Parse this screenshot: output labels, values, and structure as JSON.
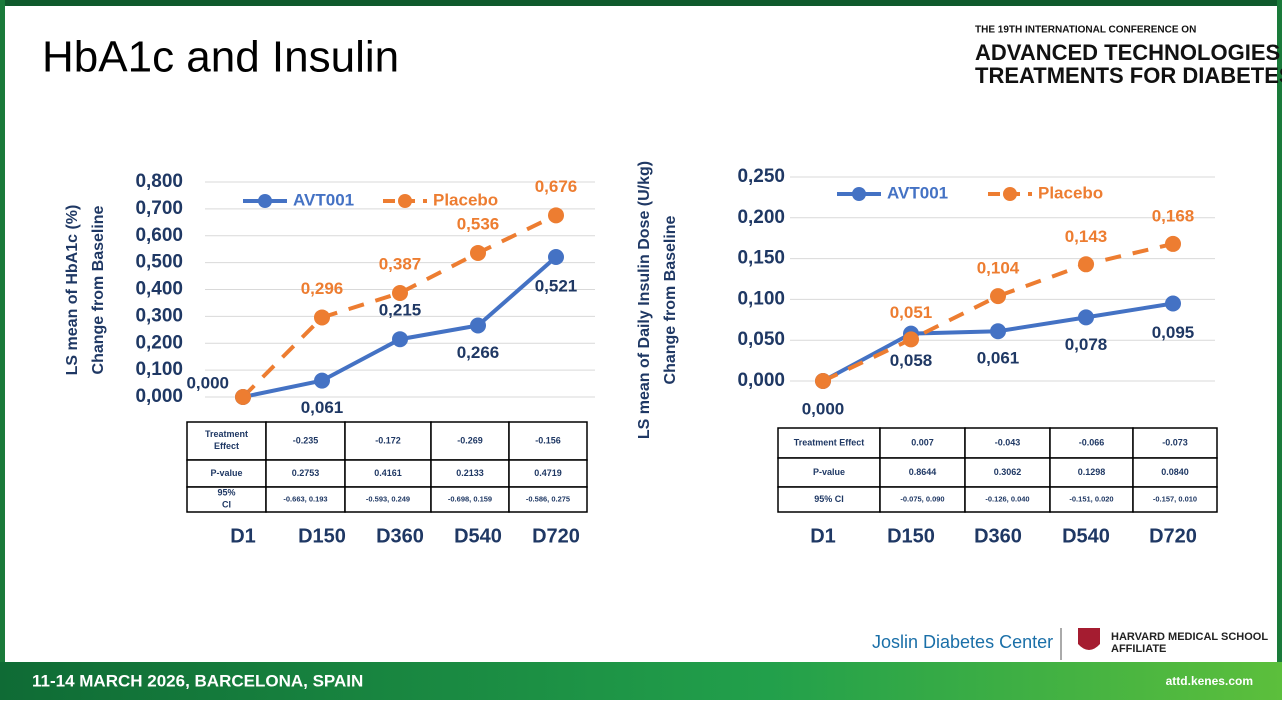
{
  "slide": {
    "title": "HbA1c and Insulin",
    "conference_intro": "THE 19TH INTERNATIONAL CONFERENCE ON",
    "conference_name": [
      "ADVANCED TECHNOLOGIES &",
      "TREATMENTS FOR DIABETES"
    ],
    "footer_event": "11-14 MARCH 2026, BARCELONA, SPAIN",
    "footer_url": "attd.kenes.com",
    "partner": "Joslin Diabetes Center",
    "affiliate": [
      "HARVARD MEDICAL SCHOOL",
      "AFFILIATE"
    ]
  },
  "chart_data": [
    {
      "type": "line",
      "y_label": [
        "LS mean of HbA1c (%)",
        "Change from Baseline"
      ],
      "categories": [
        "D1",
        "D150",
        "D360",
        "D540",
        "D720"
      ],
      "series": [
        {
          "name": "AVT001",
          "color": "#4472c4",
          "values": [
            0.0,
            0.061,
            0.215,
            0.266,
            0.521
          ],
          "value_labels": [
            "0,000",
            "0,061",
            "0,215",
            "0,266",
            "0,521"
          ]
        },
        {
          "name": "Placebo",
          "color": "#ed7d31",
          "values": [
            0.0,
            0.296,
            0.387,
            0.536,
            0.676
          ],
          "value_labels": [
            null,
            "0,296",
            "0,387",
            "0,536",
            "0,676"
          ]
        }
      ],
      "ylim": [
        0,
        0.8
      ],
      "yticks": [
        {
          "value": 0,
          "label": "0,000"
        },
        {
          "value": 0.1,
          "label": "0,100"
        },
        {
          "value": 0.2,
          "label": "0,200"
        },
        {
          "value": 0.3,
          "label": "0,300"
        },
        {
          "value": 0.4,
          "label": "0,400"
        },
        {
          "value": 0.5,
          "label": "0,500"
        },
        {
          "value": 0.6,
          "label": "0,600"
        },
        {
          "value": 0.7,
          "label": "0,700"
        },
        {
          "value": 0.8,
          "label": "0,800"
        }
      ],
      "grid": true,
      "table": {
        "rows": [
          {
            "label": "Treatment Effect",
            "cells": [
              "-0.235",
              "-0.172",
              "-0.269",
              "-0.156"
            ]
          },
          {
            "label": "P-value",
            "cells": [
              "0.2753",
              "0.4161",
              "0.2133",
              "0.4719"
            ]
          },
          {
            "label": "95% CI",
            "cells": [
              "-0.663, 0.193",
              "-0.593, 0.249",
              "-0.698, 0.159",
              "-0.586, 0.275"
            ]
          }
        ]
      }
    },
    {
      "type": "line",
      "y_label": [
        "LS mean of Daily Insulin Dose (U/kg)",
        "Change from Baseline"
      ],
      "categories": [
        "D1",
        "D150",
        "D360",
        "D540",
        "D720"
      ],
      "series": [
        {
          "name": "AVT001",
          "color": "#4472c4",
          "values": [
            0.0,
            0.058,
            0.061,
            0.078,
            0.095
          ],
          "value_labels": [
            "0,000",
            "0,058",
            "0,061",
            "0,078",
            "0,095"
          ]
        },
        {
          "name": "Placebo",
          "color": "#ed7d31",
          "values": [
            0.0,
            0.051,
            0.104,
            0.143,
            0.168
          ],
          "value_labels": [
            null,
            "0,051",
            "0,104",
            "0,143",
            "0,168"
          ]
        }
      ],
      "ylim": [
        0,
        0.25
      ],
      "yticks": [
        {
          "value": 0,
          "label": "0,000"
        },
        {
          "value": 0.05,
          "label": "0,050"
        },
        {
          "value": 0.1,
          "label": "0,100"
        },
        {
          "value": 0.15,
          "label": "0,150"
        },
        {
          "value": 0.2,
          "label": "0,200"
        },
        {
          "value": 0.25,
          "label": "0,250"
        }
      ],
      "grid": true,
      "table": {
        "rows": [
          {
            "label": "Treatment Effect",
            "cells": [
              "0.007",
              "-0.043",
              "-0.066",
              "-0.073"
            ]
          },
          {
            "label": "P-value",
            "cells": [
              "0.8644",
              "0.3062",
              "0.1298",
              "0.0840"
            ]
          },
          {
            "label": "95% CI",
            "cells": [
              "-0.075, 0.090",
              "-0.126, 0.040",
              "-0.151, 0.020",
              "-0.157, 0.010"
            ]
          }
        ]
      }
    }
  ]
}
